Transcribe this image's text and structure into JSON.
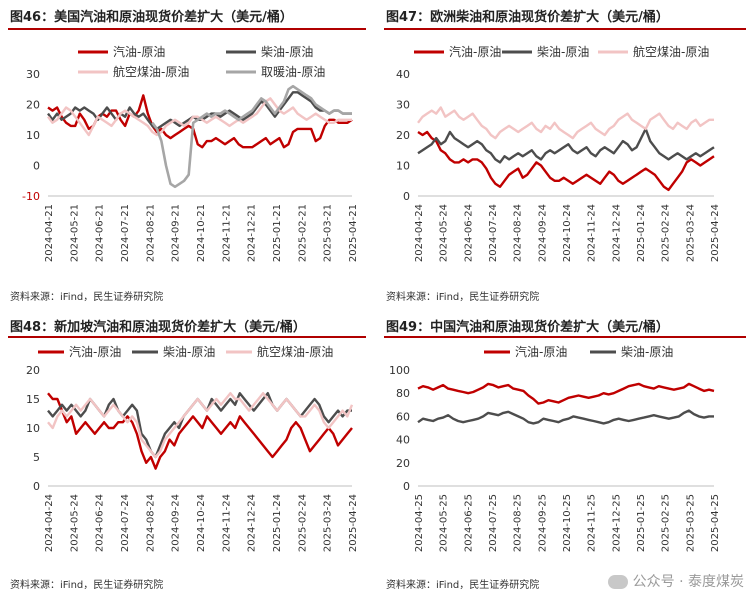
{
  "source_text": "资料来源：iFind，民生证券研究院",
  "watermark": "公众号 · 泰度煤炭",
  "colors": {
    "red": "#c00000",
    "dark": "#4d4d4d",
    "pink": "#f2c4c4",
    "gray": "#a6a6a6"
  },
  "chart_data": [
    {
      "id": "fig46",
      "type": "line",
      "title": "图46：美国汽油和原油现货价差扩大（美元/桶）",
      "ylim": [
        -10,
        30
      ],
      "yticks": [
        -10,
        0,
        10,
        20,
        30
      ],
      "neg_tick_color": "#c00000",
      "xticklabels": [
        "2024-04-21",
        "2024-05-21",
        "2024-06-21",
        "2024-07-21",
        "2024-08-21",
        "2024-09-21",
        "2024-10-21",
        "2024-11-21",
        "2024-12-21",
        "2025-01-21",
        "2025-02-21",
        "2025-03-21",
        "2025-04-21"
      ],
      "legend_position": "top",
      "series": [
        {
          "name": "汽油-原油",
          "color": "red",
          "width": 2.4,
          "values": [
            19,
            18,
            19,
            16,
            14,
            13,
            13,
            17,
            15,
            12,
            13,
            16,
            17,
            16,
            18,
            18,
            15,
            13,
            17,
            16,
            18,
            23,
            17,
            13,
            11,
            12,
            10,
            9,
            10,
            11,
            12,
            13,
            12,
            7,
            6,
            8,
            8,
            9,
            8,
            7,
            8,
            9,
            7,
            6,
            6,
            6,
            7,
            8,
            9,
            7,
            8,
            9,
            6,
            7,
            11,
            12,
            12,
            12,
            12,
            8,
            9,
            13,
            15,
            15,
            14,
            14,
            14,
            15
          ]
        },
        {
          "name": "柴油-原油",
          "color": "dark",
          "width": 2.4,
          "values": [
            17,
            15,
            17,
            15,
            16,
            17,
            19,
            18,
            19,
            18,
            17,
            15,
            17,
            19,
            17,
            15,
            17,
            16,
            19,
            17,
            16,
            17,
            15,
            13,
            12,
            13,
            14,
            15,
            14,
            13,
            14,
            15,
            16,
            15,
            15,
            16,
            17,
            17,
            16,
            17,
            18,
            17,
            16,
            15,
            16,
            17,
            19,
            21,
            20,
            18,
            16,
            18,
            20,
            22,
            24,
            24,
            23,
            22,
            21,
            19,
            18,
            18,
            17,
            18,
            18,
            17,
            17,
            17
          ]
        },
        {
          "name": "航空煤油-原油",
          "color": "pink",
          "width": 2.4,
          "values": [
            16,
            14,
            15,
            17,
            19,
            18,
            16,
            14,
            12,
            10,
            13,
            16,
            15,
            14,
            13,
            15,
            17,
            18,
            17,
            16,
            15,
            14,
            13,
            11,
            10,
            11,
            13,
            14,
            15,
            14,
            13,
            14,
            16,
            16,
            15,
            14,
            15,
            16,
            15,
            14,
            13,
            14,
            15,
            14,
            15,
            16,
            17,
            19,
            21,
            22,
            20,
            18,
            17,
            18,
            19,
            17,
            16,
            15,
            16,
            17,
            16,
            15,
            14,
            14,
            15,
            15,
            15,
            15
          ]
        },
        {
          "name": "取暖油-原油",
          "color": "gray",
          "width": 2.6,
          "values": [
            null,
            null,
            null,
            null,
            null,
            null,
            null,
            null,
            null,
            null,
            null,
            null,
            null,
            null,
            null,
            null,
            null,
            null,
            null,
            null,
            null,
            null,
            null,
            14,
            12,
            8,
            0,
            -6,
            -7,
            -6,
            -5,
            -3,
            14,
            15,
            16,
            17,
            16,
            17,
            17,
            18,
            17,
            16,
            15,
            16,
            17,
            18,
            20,
            22,
            21,
            19,
            17,
            19,
            21,
            25,
            26,
            25,
            24,
            23,
            22,
            20,
            19,
            18,
            17,
            18,
            18,
            17,
            17,
            17
          ]
        }
      ]
    },
    {
      "id": "fig47",
      "type": "line",
      "title": "图47：欧洲柴油和原油现货价差扩大（美元/桶）",
      "ylim": [
        0,
        40
      ],
      "yticks": [
        0,
        10,
        20,
        30,
        40
      ],
      "xticklabels": [
        "2024-04-24",
        "2024-05-24",
        "2024-06-24",
        "2024-07-24",
        "2024-08-24",
        "2024-09-24",
        "2024-10-24",
        "2024-11-24",
        "2024-12-24",
        "2025-01-24",
        "2025-02-24",
        "2025-03-24",
        "2025-04-24"
      ],
      "legend_position": "top",
      "series": [
        {
          "name": "汽油-原油",
          "color": "red",
          "width": 2.4,
          "values": [
            21,
            20,
            21,
            19,
            18,
            15,
            14,
            12,
            11,
            11,
            12,
            11,
            12,
            12,
            11,
            9,
            6,
            4,
            3,
            5,
            7,
            8,
            9,
            6,
            7,
            9,
            11,
            10,
            8,
            6,
            5,
            5,
            6,
            5,
            4,
            5,
            6,
            7,
            6,
            5,
            4,
            6,
            8,
            7,
            5,
            4,
            5,
            6,
            7,
            8,
            9,
            8,
            7,
            5,
            3,
            2,
            4,
            6,
            8,
            11,
            12,
            11,
            10,
            11,
            12,
            13
          ]
        },
        {
          "name": "柴油-原油",
          "color": "dark",
          "width": 2.4,
          "values": [
            14,
            15,
            16,
            17,
            19,
            17,
            18,
            21,
            19,
            18,
            17,
            16,
            17,
            18,
            17,
            15,
            14,
            12,
            11,
            13,
            12,
            13,
            14,
            13,
            14,
            15,
            13,
            12,
            14,
            15,
            14,
            15,
            16,
            17,
            15,
            14,
            15,
            16,
            14,
            13,
            15,
            16,
            15,
            14,
            16,
            18,
            17,
            15,
            16,
            19,
            22,
            18,
            16,
            14,
            13,
            12,
            13,
            14,
            13,
            12,
            13,
            14,
            13,
            14,
            15,
            16
          ]
        },
        {
          "name": "航空煤油-原油",
          "color": "pink",
          "width": 2.4,
          "values": [
            24,
            26,
            27,
            28,
            27,
            29,
            26,
            27,
            28,
            26,
            25,
            26,
            27,
            25,
            23,
            22,
            20,
            19,
            21,
            22,
            23,
            22,
            21,
            22,
            23,
            24,
            22,
            21,
            23,
            22,
            24,
            22,
            21,
            20,
            19,
            21,
            22,
            23,
            24,
            22,
            21,
            20,
            22,
            23,
            25,
            26,
            27,
            25,
            24,
            23,
            22,
            25,
            26,
            27,
            25,
            23,
            22,
            24,
            23,
            22,
            24,
            25,
            23,
            24,
            25,
            25
          ]
        }
      ]
    },
    {
      "id": "fig48",
      "type": "line",
      "title": "图48：新加坡汽油和原油现货价差扩大（美元/桶）",
      "ylim": [
        0,
        20
      ],
      "yticks": [
        0,
        5,
        10,
        15,
        20
      ],
      "xticklabels": [
        "2024-04-24",
        "2024-05-24",
        "2024-06-24",
        "2024-07-24",
        "2024-08-24",
        "2024-09-24",
        "2024-10-24",
        "2024-11-24",
        "2024-12-24",
        "2025-01-24",
        "2025-02-24",
        "2025-03-24",
        "2025-04-24"
      ],
      "legend_position": "top",
      "series": [
        {
          "name": "汽油-原油",
          "color": "red",
          "width": 2.4,
          "values": [
            16,
            15,
            15,
            13,
            11,
            12,
            9,
            10,
            11,
            10,
            9,
            10,
            11,
            10,
            10,
            11,
            11,
            12,
            11,
            9,
            6,
            4,
            5,
            3,
            5,
            6,
            8,
            7,
            9,
            10,
            11,
            12,
            11,
            10,
            12,
            11,
            10,
            9,
            10,
            11,
            10,
            12,
            11,
            10,
            9,
            8,
            7,
            6,
            5,
            6,
            7,
            8,
            10,
            11,
            10,
            8,
            6,
            7,
            8,
            9,
            10,
            9,
            7,
            8,
            9,
            10
          ]
        },
        {
          "name": "柴油-原油",
          "color": "dark",
          "width": 2.4,
          "values": [
            13,
            12,
            13,
            14,
            13,
            14,
            13,
            12,
            13,
            15,
            14,
            13,
            12,
            14,
            15,
            13,
            12,
            13,
            14,
            13,
            9,
            8,
            6,
            5,
            7,
            9,
            10,
            11,
            10,
            12,
            13,
            14,
            15,
            14,
            13,
            15,
            14,
            13,
            14,
            15,
            14,
            16,
            15,
            14,
            13,
            14,
            15,
            16,
            14,
            13,
            14,
            15,
            14,
            13,
            12,
            13,
            14,
            15,
            14,
            12,
            11,
            12,
            13,
            12,
            13,
            13
          ]
        },
        {
          "name": "航空煤油-原油",
          "color": "pink",
          "width": 2.4,
          "values": [
            11,
            10,
            12,
            13,
            12,
            13,
            14,
            13,
            14,
            15,
            14,
            13,
            12,
            13,
            14,
            13,
            12,
            11,
            12,
            11,
            8,
            7,
            6,
            5,
            6,
            8,
            9,
            10,
            11,
            12,
            13,
            14,
            15,
            14,
            13,
            14,
            15,
            14,
            15,
            16,
            15,
            15,
            14,
            13,
            14,
            15,
            16,
            15,
            14,
            13,
            14,
            15,
            14,
            13,
            12,
            12,
            13,
            14,
            13,
            11,
            10,
            11,
            12,
            13,
            12,
            14
          ]
        }
      ]
    },
    {
      "id": "fig49",
      "type": "line",
      "title": "图49：中国汽油和原油现货价差扩大（美元/桶）",
      "ylim": [
        0,
        100
      ],
      "yticks": [
        0,
        20,
        40,
        60,
        80,
        100
      ],
      "xticklabels": [
        "2024-04-25",
        "2024-05-25",
        "2024-06-25",
        "2024-07-25",
        "2024-08-25",
        "2024-09-25",
        "2024-10-25",
        "2024-11-25",
        "2024-12-25",
        "2025-01-25",
        "2025-02-25",
        "2025-03-25",
        "2025-04-25"
      ],
      "legend_position": "top",
      "series": [
        {
          "name": "汽油-原油",
          "color": "red",
          "width": 2.4,
          "values": [
            84,
            86,
            85,
            83,
            85,
            87,
            84,
            83,
            82,
            81,
            80,
            81,
            83,
            85,
            88,
            87,
            85,
            86,
            87,
            84,
            83,
            82,
            78,
            75,
            71,
            72,
            74,
            73,
            72,
            74,
            76,
            77,
            78,
            77,
            76,
            77,
            78,
            80,
            79,
            80,
            82,
            84,
            86,
            87,
            88,
            86,
            85,
            84,
            86,
            85,
            84,
            83,
            84,
            85,
            88,
            86,
            84,
            82,
            83,
            82
          ]
        },
        {
          "name": "柴油-原油",
          "color": "dark",
          "width": 2.4,
          "values": [
            55,
            58,
            57,
            56,
            58,
            59,
            61,
            58,
            56,
            55,
            56,
            57,
            58,
            60,
            63,
            62,
            61,
            63,
            64,
            62,
            60,
            58,
            55,
            54,
            55,
            58,
            57,
            56,
            55,
            57,
            58,
            60,
            59,
            58,
            57,
            56,
            55,
            54,
            55,
            57,
            58,
            57,
            56,
            57,
            58,
            59,
            60,
            61,
            60,
            59,
            58,
            59,
            60,
            63,
            65,
            62,
            60,
            59,
            60,
            60
          ]
        }
      ]
    }
  ]
}
